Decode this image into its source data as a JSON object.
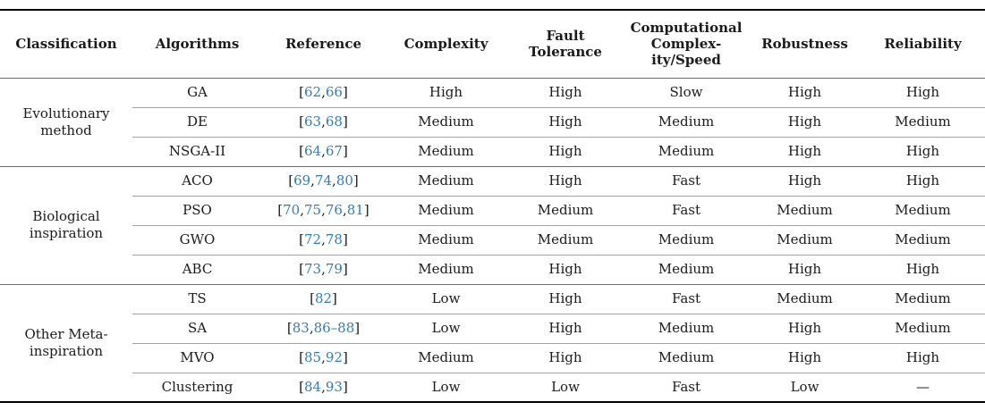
{
  "colors": {
    "citation_link_blue": "#2e7eb8",
    "text_black": "#1b1b1b",
    "rule_heavy": "#000000",
    "rule_group": "#6e6e6e",
    "rule_row": "#a3a3a3"
  },
  "table": {
    "columns": [
      "Classification",
      "Algorithms",
      "Reference",
      "Complexity",
      "Fault\nTolerance",
      "Computational\nComplex-\nity/Speed",
      "Robustness",
      "Reliability"
    ],
    "groups": [
      {
        "label": "Evolutionary\nmethod",
        "rows": [
          {
            "algorithm": "GA",
            "reference": [
              {
                "t": "["
              },
              {
                "t": "62",
                "link": true
              },
              {
                "t": ","
              },
              {
                "t": "66",
                "link": true
              },
              {
                "t": "]"
              }
            ],
            "values": [
              "High",
              "High",
              "Slow",
              "High",
              "High"
            ]
          },
          {
            "algorithm": "DE",
            "reference": [
              {
                "t": "["
              },
              {
                "t": "63",
                "link": true
              },
              {
                "t": ","
              },
              {
                "t": "68",
                "link": true
              },
              {
                "t": "]"
              }
            ],
            "values": [
              "Medium",
              "High",
              "Medium",
              "High",
              "Medium"
            ]
          },
          {
            "algorithm": "NSGA-II",
            "reference": [
              {
                "t": "["
              },
              {
                "t": "64",
                "link": true
              },
              {
                "t": ","
              },
              {
                "t": "67",
                "link": true
              },
              {
                "t": "]"
              }
            ],
            "values": [
              "Medium",
              "High",
              "Medium",
              "High",
              "High"
            ]
          }
        ]
      },
      {
        "label": "Biological\ninspiration",
        "rows": [
          {
            "algorithm": "ACO",
            "reference": [
              {
                "t": "["
              },
              {
                "t": "69",
                "link": true
              },
              {
                "t": ","
              },
              {
                "t": "74",
                "link": true
              },
              {
                "t": ","
              },
              {
                "t": "80",
                "link": true
              },
              {
                "t": "]"
              }
            ],
            "values": [
              "Medium",
              "High",
              "Fast",
              "High",
              "High"
            ]
          },
          {
            "algorithm": "PSO",
            "reference": [
              {
                "t": "["
              },
              {
                "t": "70",
                "link": true
              },
              {
                "t": ","
              },
              {
                "t": "75",
                "link": true
              },
              {
                "t": ","
              },
              {
                "t": "76",
                "link": true
              },
              {
                "t": ","
              },
              {
                "t": "81",
                "link": true
              },
              {
                "t": "]"
              }
            ],
            "values": [
              "Medium",
              "Medium",
              "Fast",
              "Medium",
              "Medium"
            ]
          },
          {
            "algorithm": "GWO",
            "reference": [
              {
                "t": "["
              },
              {
                "t": "72",
                "link": true
              },
              {
                "t": ","
              },
              {
                "t": "78",
                "link": true
              },
              {
                "t": "]"
              }
            ],
            "values": [
              "Medium",
              "Medium",
              "Medium",
              "Medium",
              "Medium"
            ]
          },
          {
            "algorithm": "ABC",
            "reference": [
              {
                "t": "["
              },
              {
                "t": "73",
                "link": true
              },
              {
                "t": ","
              },
              {
                "t": "79",
                "link": true
              },
              {
                "t": "]"
              }
            ],
            "values": [
              "Medium",
              "High",
              "Medium",
              "High",
              "High"
            ]
          }
        ]
      },
      {
        "label": "Other Meta-\ninspiration",
        "rows": [
          {
            "algorithm": "TS",
            "reference": [
              {
                "t": "["
              },
              {
                "t": "82",
                "link": true
              },
              {
                "t": "]"
              }
            ],
            "values": [
              "Low",
              "High",
              "Fast",
              "Medium",
              "Medium"
            ]
          },
          {
            "algorithm": "SA",
            "reference": [
              {
                "t": "["
              },
              {
                "t": "83",
                "link": true
              },
              {
                "t": ","
              },
              {
                "t": "86–88",
                "link": true
              },
              {
                "t": "]"
              }
            ],
            "values": [
              "Low",
              "High",
              "Medium",
              "High",
              "Medium"
            ]
          },
          {
            "algorithm": "MVO",
            "reference": [
              {
                "t": "["
              },
              {
                "t": "85",
                "link": true
              },
              {
                "t": ","
              },
              {
                "t": "92",
                "link": true
              },
              {
                "t": "]"
              }
            ],
            "values": [
              "Medium",
              "High",
              "Medium",
              "High",
              "High"
            ]
          },
          {
            "algorithm": "Clustering",
            "reference": [
              {
                "t": "["
              },
              {
                "t": "84",
                "link": true
              },
              {
                "t": ","
              },
              {
                "t": "93",
                "link": true
              },
              {
                "t": "]"
              }
            ],
            "values": [
              "Low",
              "Low",
              "Fast",
              "Low",
              "—"
            ]
          }
        ]
      }
    ]
  }
}
